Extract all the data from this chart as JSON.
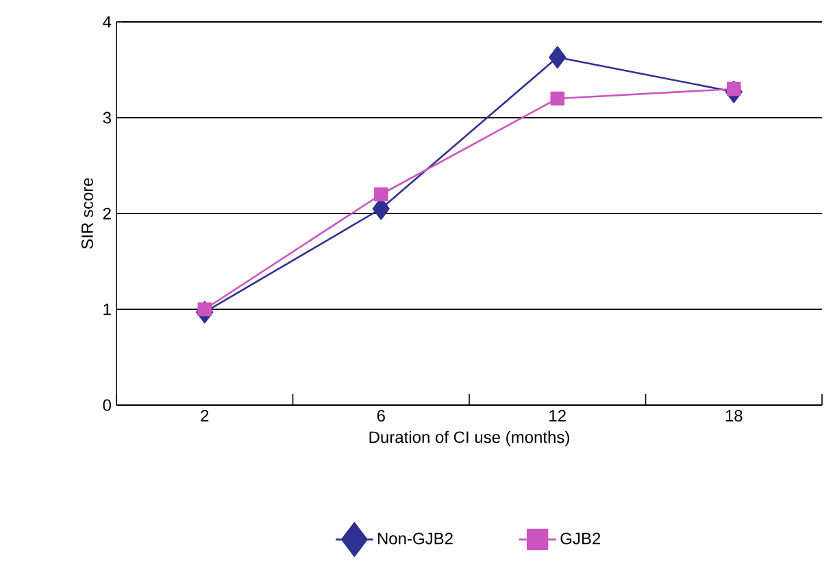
{
  "chart_data": {
    "type": "line",
    "xlabel": "Duration of CI use (months)",
    "ylabel": "SIR score",
    "categories": [
      "2",
      "6",
      "12",
      "18"
    ],
    "series": [
      {
        "name": "Non-GJB2",
        "color": "#2e3192",
        "marker": "diamond",
        "values": [
          0.97,
          2.05,
          3.63,
          3.27
        ]
      },
      {
        "name": "GJB2",
        "color": "#cc55c0",
        "marker": "square",
        "values": [
          1.0,
          2.2,
          3.2,
          3.3
        ]
      }
    ],
    "ylim": [
      0,
      4
    ],
    "yticks": [
      0,
      1,
      2,
      3,
      4
    ],
    "grid": "y",
    "legend": "bottom"
  }
}
